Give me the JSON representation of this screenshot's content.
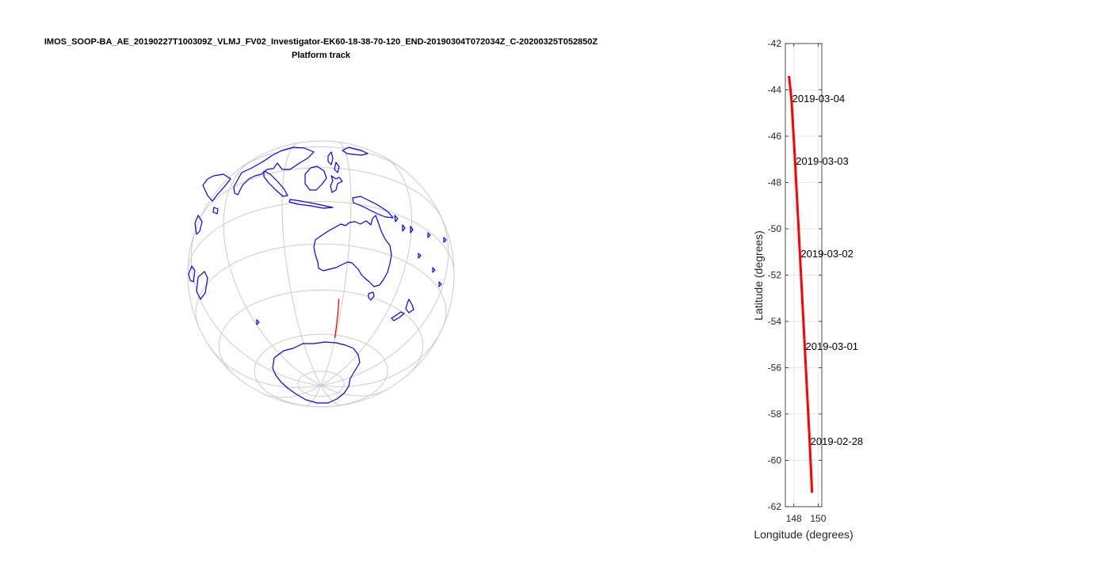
{
  "figure": {
    "title_line1": "IMOS_SOOP-BA_AE_20190227T100309Z_VLMJ_FV02_Investigator-EK60-18-38-70-120_END-20190304T072034Z_C-20200325T052850Z",
    "title_line2": "Platform track"
  },
  "colors": {
    "coastline": "#0000ff",
    "track": "#ff0000",
    "graticule": "#cccccc",
    "axes": "#262626"
  },
  "chart_data": [
    {
      "type": "map",
      "projection": "orthographic",
      "center": {
        "lat": -33,
        "lon": 137
      },
      "graticule": true,
      "coastline_color": "blue",
      "track_color": "red",
      "track": {
        "lon": [
          147.6,
          147.8,
          148.1,
          148.5,
          148.9,
          149.3,
          149.5
        ],
        "lat": [
          -43.4,
          -44.4,
          -47.1,
          -51.1,
          -55.1,
          -59.2,
          -61.4
        ]
      }
    },
    {
      "type": "line",
      "xlabel": "Longitude (degrees)",
      "ylabel": "Latitude (degrees)",
      "xlim": [
        147.3,
        150.3
      ],
      "ylim": [
        -62,
        -42
      ],
      "xticks": [
        148,
        150
      ],
      "yticks": [
        -62,
        -60,
        -58,
        -56,
        -54,
        -52,
        -50,
        -48,
        -46,
        -44,
        -42
      ],
      "grid": true,
      "series": [
        {
          "x": [
            147.6,
            147.8,
            148.1,
            148.5,
            148.9,
            149.3,
            149.5
          ],
          "y": [
            -43.4,
            -44.4,
            -47.1,
            -51.1,
            -55.1,
            -59.2,
            -61.4
          ]
        }
      ],
      "annotations": [
        {
          "text": "2019-03-04",
          "x": 147.8,
          "y": -44.4
        },
        {
          "text": "2019-03-03",
          "x": 148.1,
          "y": -47.1
        },
        {
          "text": "2019-03-02",
          "x": 148.5,
          "y": -51.1
        },
        {
          "text": "2019-03-01",
          "x": 148.9,
          "y": -55.1
        },
        {
          "text": "2019-02-28",
          "x": 149.3,
          "y": -59.2
        }
      ]
    }
  ]
}
